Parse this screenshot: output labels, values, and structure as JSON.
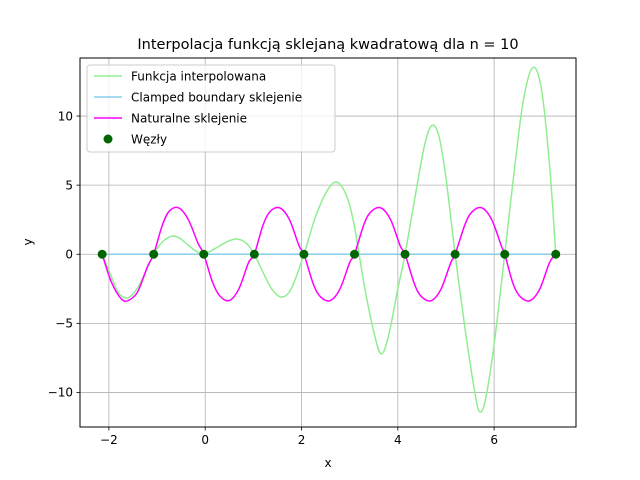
{
  "chart_data": {
    "type": "line",
    "title": "Interpolacja funkcją sklejaną kwadratową dla n = 10",
    "xlabel": "x",
    "ylabel": "y",
    "xlim": [
      -2.6,
      7.7
    ],
    "ylim": [
      -12.5,
      14.2
    ],
    "xticks": [
      -2,
      0,
      2,
      4,
      6
    ],
    "xtick_labels": [
      "−2",
      "0",
      "2",
      "4",
      "6"
    ],
    "yticks": [
      -10,
      -5,
      0,
      5,
      10
    ],
    "ytick_labels": [
      "−10",
      "−5",
      "0",
      "5",
      "10"
    ],
    "grid": true,
    "legend_position": "top-left",
    "series": [
      {
        "name": "Funkcja interpolowana",
        "kind": "line",
        "color": "#90ee90",
        "x": [
          -2.14,
          -1.95,
          -1.8,
          -1.6,
          -1.4,
          -1.2,
          -1.07,
          -0.9,
          -0.7,
          -0.55,
          -0.4,
          -0.2,
          -0.03,
          0.2,
          0.45,
          0.65,
          0.85,
          1.02,
          1.2,
          1.4,
          1.6,
          1.8,
          2.05,
          2.3,
          2.55,
          2.75,
          2.95,
          3.1,
          3.3,
          3.5,
          3.65,
          3.8,
          4.0,
          4.15,
          4.35,
          4.55,
          4.7,
          4.85,
          5.0,
          5.19,
          5.4,
          5.6,
          5.7,
          5.82,
          6.0,
          6.22,
          6.4,
          6.6,
          6.8,
          6.98,
          7.15,
          7.28
        ],
        "y": [
          0,
          -1.6,
          -2.8,
          -3.15,
          -2.4,
          -1.0,
          0,
          0.85,
          1.3,
          1.2,
          0.8,
          0.25,
          0,
          0.4,
          0.9,
          1.1,
          0.8,
          0,
          -1.3,
          -2.6,
          -3.1,
          -2.4,
          0,
          2.8,
          4.7,
          5.2,
          4.1,
          2.0,
          -2.2,
          -5.6,
          -7.2,
          -6.0,
          -2.5,
          0,
          4.0,
          7.8,
          9.3,
          8.6,
          5.5,
          0,
          -5.5,
          -10.0,
          -11.4,
          -10.5,
          -6.5,
          0,
          5.5,
          11.0,
          13.5,
          12.0,
          6.5,
          0
        ]
      },
      {
        "name": "Clamped boundary sklejenie",
        "kind": "line",
        "color": "#87ceeb",
        "x": [
          -2.14,
          7.28
        ],
        "y": [
          0,
          0
        ]
      },
      {
        "name": "Naturalne sklejenie",
        "kind": "line",
        "color": "#ff00ff",
        "x": [
          -2.14,
          -1.95,
          -1.75,
          -1.6,
          -1.4,
          -1.2,
          -1.07,
          -0.9,
          -0.75,
          -0.55,
          -0.35,
          -0.15,
          -0.03,
          0.15,
          0.3,
          0.5,
          0.7,
          0.9,
          1.02,
          1.2,
          1.35,
          1.55,
          1.75,
          1.95,
          2.05,
          2.25,
          2.4,
          2.6,
          2.8,
          3.0,
          3.1,
          3.3,
          3.45,
          3.65,
          3.85,
          4.05,
          4.15,
          4.35,
          4.5,
          4.7,
          4.9,
          5.1,
          5.19,
          5.4,
          5.55,
          5.75,
          5.95,
          6.15,
          6.22,
          6.4,
          6.55,
          6.75,
          6.95,
          7.15,
          7.28
        ],
        "y": [
          0,
          -2.0,
          -3.2,
          -3.35,
          -2.7,
          -0.9,
          0,
          2.0,
          3.1,
          3.35,
          2.5,
          0.8,
          0,
          -2.0,
          -3.0,
          -3.35,
          -2.5,
          -0.6,
          0,
          2.1,
          3.1,
          3.35,
          2.5,
          0.6,
          0,
          -2.2,
          -3.1,
          -3.35,
          -2.5,
          -0.6,
          0,
          2.2,
          3.1,
          3.35,
          2.5,
          0.6,
          0,
          -2.2,
          -3.1,
          -3.35,
          -2.5,
          -0.6,
          0,
          2.2,
          3.1,
          3.35,
          2.5,
          0.6,
          0,
          -2.2,
          -3.1,
          -3.35,
          -2.5,
          -0.6,
          0
        ]
      },
      {
        "name": "Węzły",
        "kind": "scatter",
        "color": "#006400",
        "x": [
          -2.14,
          -1.07,
          -0.03,
          1.02,
          2.05,
          3.1,
          4.15,
          5.19,
          6.22,
          7.28
        ],
        "y": [
          0,
          0,
          0,
          0,
          0,
          0,
          0,
          0,
          0,
          0
        ]
      }
    ]
  }
}
